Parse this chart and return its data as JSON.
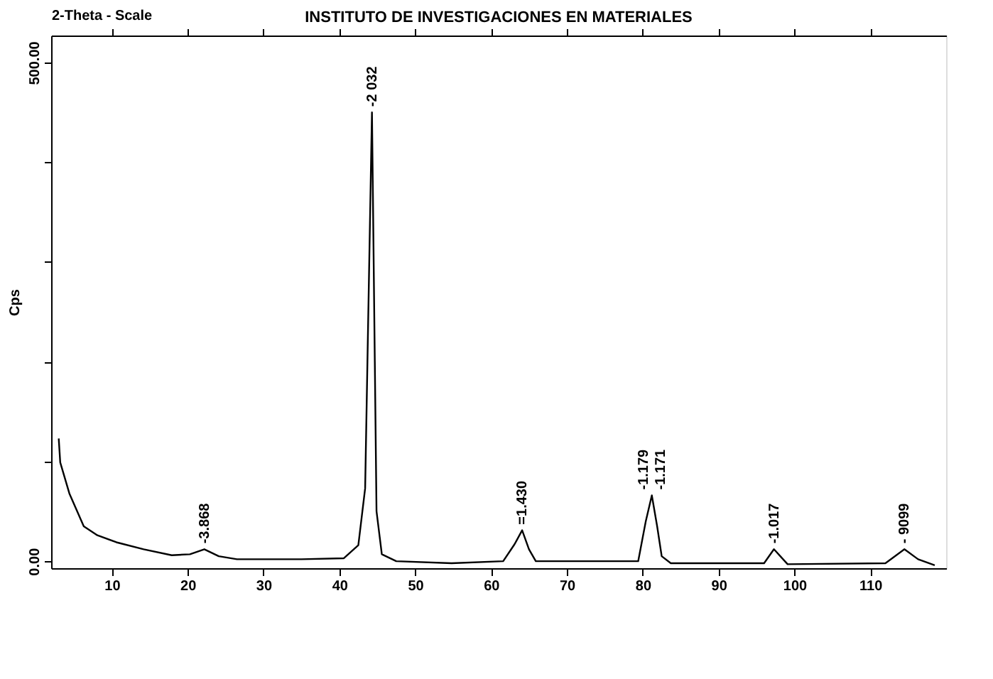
{
  "chart_data": {
    "type": "line",
    "title": "INSTITUTO DE INVESTIGACIONES EN MATERIALES",
    "xlabel": "2-Theta - Scale",
    "ylabel": "Cps",
    "x": [
      3.0,
      3.2,
      4.4,
      6.3,
      8.1,
      10.6,
      14.2,
      17.9,
      20.3,
      22.2,
      24.1,
      26.5,
      35.0,
      40.6,
      42.5,
      43.4,
      44.3,
      44.9,
      45.6,
      47.5,
      54.8,
      61.6,
      63.1,
      64.1,
      65.0,
      65.9,
      79.4,
      80.4,
      81.2,
      81.9,
      82.5,
      83.7,
      96.0,
      97.3,
      98.5,
      99.1,
      112.0,
      114.5,
      116.3,
      118.5
    ],
    "series": [
      {
        "color": "#000000",
        "values": [
          123,
          99,
          68,
          35,
          26,
          19,
          12,
          6,
          7,
          12,
          5,
          2,
          2,
          3,
          16,
          73,
          450,
          50,
          7,
          0,
          -2,
          0,
          17,
          31,
          12,
          0,
          0,
          40,
          66,
          35,
          5,
          -2,
          -2,
          12,
          2,
          -3,
          -2,
          12,
          2,
          -4
        ]
      }
    ],
    "xlim": [
      2,
      120
    ],
    "xticks": [
      10,
      20,
      30,
      40,
      50,
      60,
      70,
      80,
      90,
      100,
      110
    ],
    "ylim": [
      -7,
      527
    ],
    "yticks": [
      {
        "value": 0,
        "label": "0.00"
      },
      {
        "value": 100,
        "label": null
      },
      {
        "value": 200,
        "label": null
      },
      {
        "value": 300,
        "label": null
      },
      {
        "value": 400,
        "label": null
      },
      {
        "value": 500,
        "label": "500.00"
      }
    ],
    "annotations": [
      {
        "text": "-3.868",
        "x": 22.2,
        "y": 12
      },
      {
        "text": "-2 032",
        "x": 44.3,
        "y": 450
      },
      {
        "text": "=1.430",
        "x": 64.1,
        "y": 31
      },
      {
        "text": "-1.179",
        "x": 81.2,
        "y": 66
      },
      {
        "text": "-1.171",
        "x": 81.2,
        "y": 66
      },
      {
        "text": "-1.017",
        "x": 97.3,
        "y": 12
      },
      {
        "text": "- 9099",
        "x": 114.5,
        "y": 12
      }
    ],
    "grid": false,
    "marker": "none",
    "line_style": "solid"
  }
}
